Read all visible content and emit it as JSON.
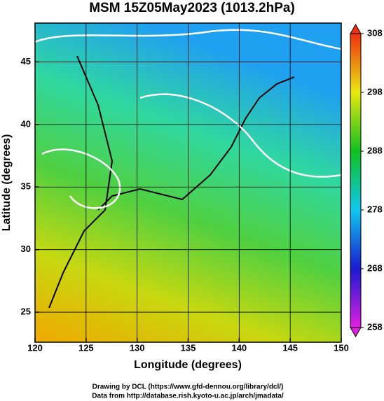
{
  "chart_data": {
    "type": "map",
    "title": "MSM 15Z05May2023 (1013.2hPa)",
    "xlabel": "Longitude (degrees)",
    "ylabel": "Latitude  (degrees)",
    "xlim": [
      120,
      150
    ],
    "ylim": [
      22.6,
      48.1
    ],
    "xticks": [
      120,
      125,
      130,
      135,
      140,
      145,
      150
    ],
    "yticks": [
      25,
      30,
      35,
      40,
      45
    ],
    "grid": true,
    "colorbar": {
      "lim": [
        258,
        308
      ],
      "ticks": [
        258,
        268,
        278,
        288,
        298,
        308
      ],
      "colors": [
        "#e020e0",
        "#1a1ad0",
        "#10c8f0",
        "#10c020",
        "#e8e810",
        "#f03010"
      ]
    }
  },
  "footer": [
    "Drawing by DCL (https://www.gfd-dennou.org/library/dcl/)",
    "Data from http://database.rish.kyoto-u.ac.jp/arch/jmadata/"
  ]
}
